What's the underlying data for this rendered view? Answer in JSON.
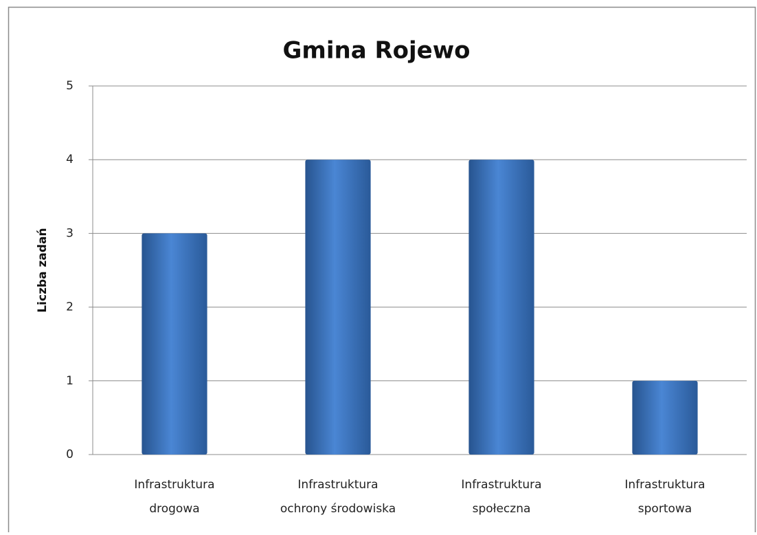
{
  "chart_data": {
    "type": "bar",
    "title": "Gmina Rojewo",
    "y_label": "Liczba zadań",
    "categories": [
      "Infrastruktura drogowa",
      "Infrastruktura ochrony środowiska",
      "Infrastruktura społeczna",
      "Infrastruktura sportowa"
    ],
    "values": [
      3,
      4,
      4,
      1
    ],
    "color": "#4a86d4",
    "ylim": [
      0,
      5
    ],
    "yticks": [
      0,
      1,
      2,
      3,
      4,
      5
    ],
    "grid": true
  }
}
